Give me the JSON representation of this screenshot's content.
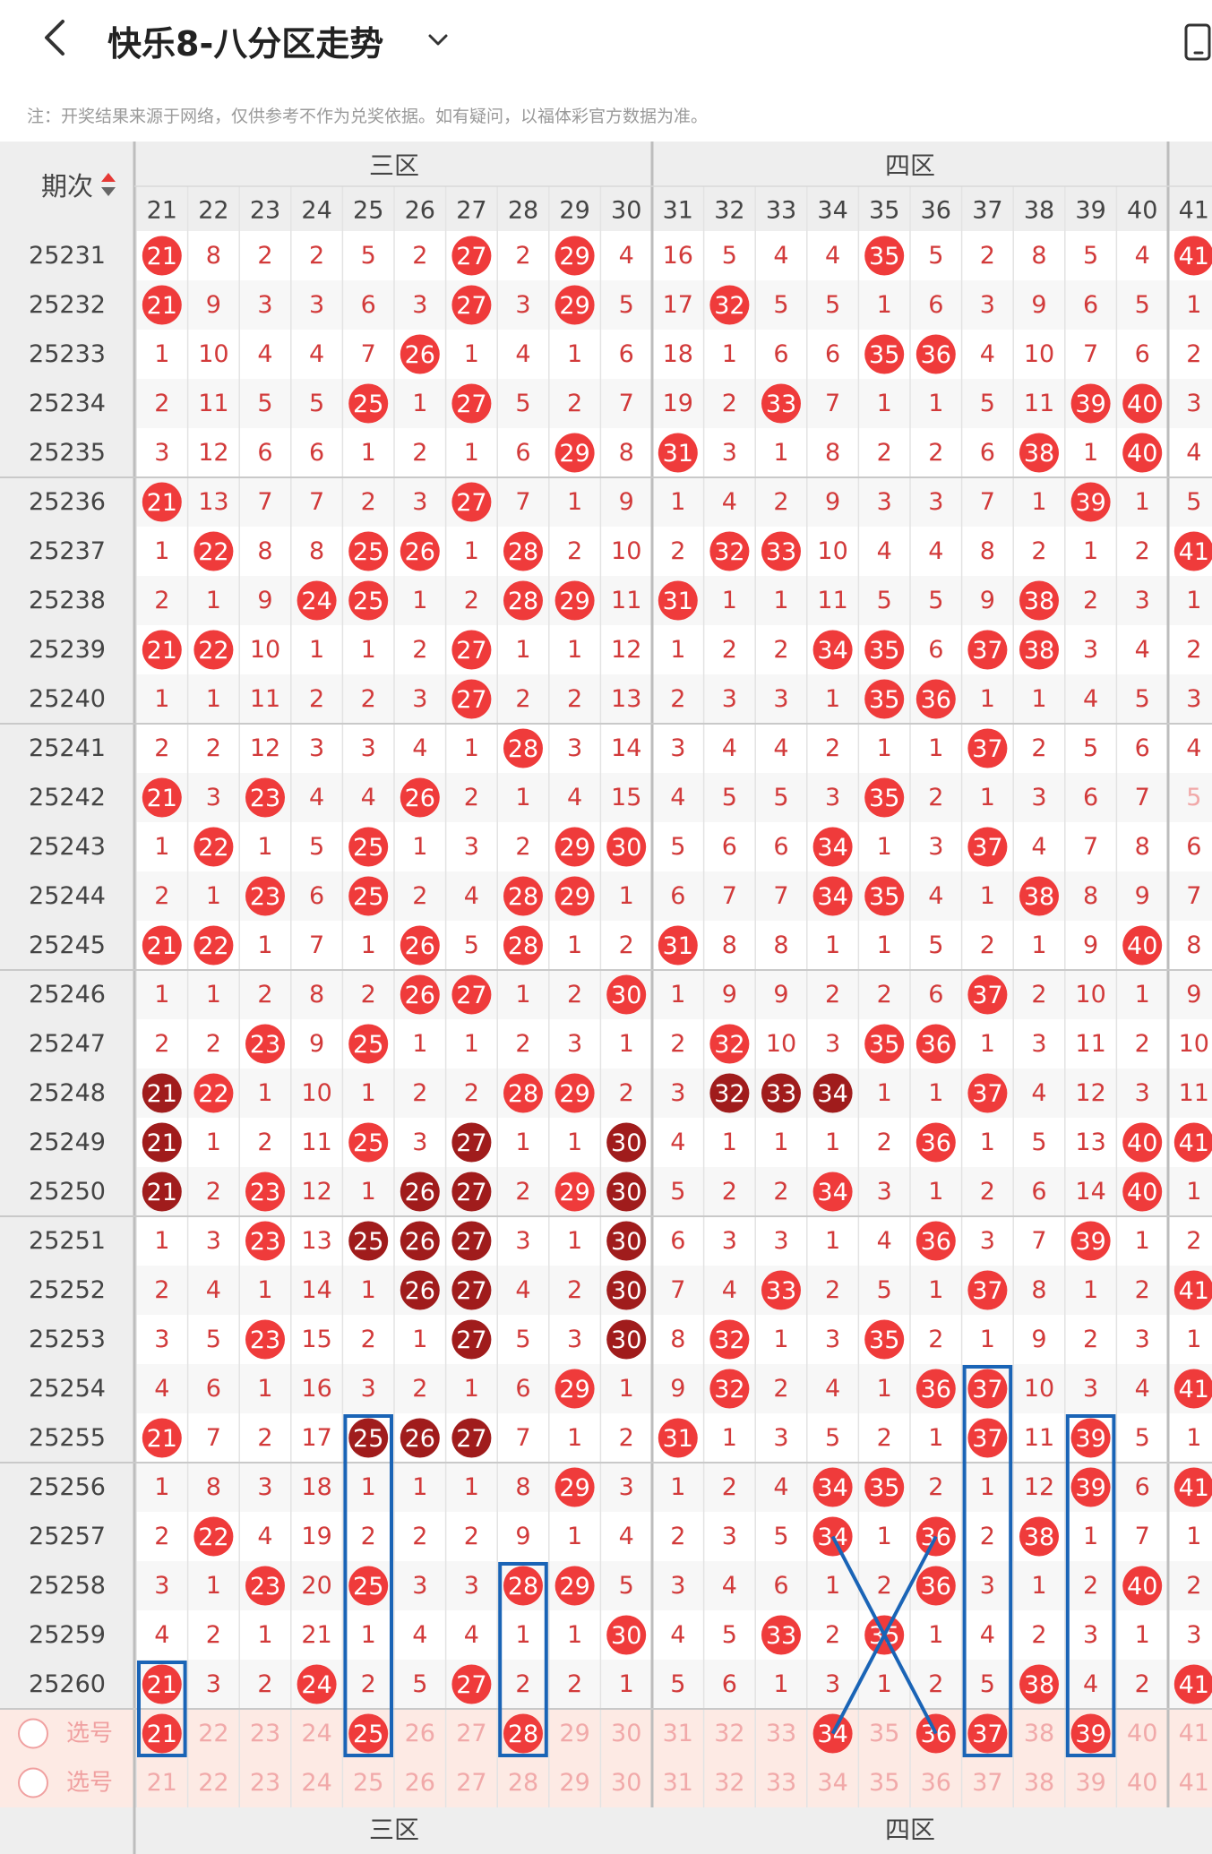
{
  "header": {
    "title": "快乐8-八分区走势",
    "back_icon": "back-arrow-icon",
    "dropdown_icon": "chevron-down-icon",
    "device_icon": "phone-icon"
  },
  "note": "注：开奖结果来源于网络，仅供参考不作为兑奖依据。如有疑问，以福体彩官方数据为准。",
  "table": {
    "period_header": "期次",
    "sort_icon": "sort-updown-icon",
    "zones": [
      {
        "label": "三区",
        "start": 21,
        "end": 30
      },
      {
        "label": "四区",
        "start": 31,
        "end": 40
      }
    ],
    "columns": [
      "21",
      "22",
      "23",
      "24",
      "25",
      "26",
      "27",
      "28",
      "29",
      "30",
      "31",
      "32",
      "33",
      "34",
      "35",
      "36",
      "37",
      "38",
      "39",
      "40",
      "41"
    ],
    "rows": [
      {
        "p": "25231",
        "c": [
          "H",
          "8",
          "2",
          "2",
          "5",
          "2",
          "H",
          "2",
          "H",
          "4",
          "16",
          "5",
          "4",
          "4",
          "H",
          "5",
          "2",
          "8",
          "5",
          "4",
          "H"
        ]
      },
      {
        "p": "25232",
        "c": [
          "H",
          "9",
          "3",
          "3",
          "6",
          "3",
          "H",
          "3",
          "H",
          "5",
          "17",
          "H",
          "5",
          "5",
          "1",
          "6",
          "3",
          "9",
          "6",
          "5",
          "1"
        ]
      },
      {
        "p": "25233",
        "c": [
          "1",
          "10",
          "4",
          "4",
          "7",
          "H",
          "1",
          "4",
          "1",
          "6",
          "18",
          "1",
          "6",
          "6",
          "H",
          "H",
          "4",
          "10",
          "7",
          "6",
          "2"
        ]
      },
      {
        "p": "25234",
        "c": [
          "2",
          "11",
          "5",
          "5",
          "H",
          "1",
          "H",
          "5",
          "2",
          "7",
          "19",
          "2",
          "H",
          "7",
          "1",
          "1",
          "5",
          "11",
          "H",
          "H",
          "3"
        ]
      },
      {
        "p": "25235",
        "c": [
          "3",
          "12",
          "6",
          "6",
          "1",
          "2",
          "1",
          "6",
          "H",
          "8",
          "H",
          "3",
          "1",
          "8",
          "2",
          "2",
          "6",
          "H",
          "1",
          "H",
          "4"
        ]
      },
      {
        "p": "25236",
        "c": [
          "H",
          "13",
          "7",
          "7",
          "2",
          "3",
          "H",
          "7",
          "1",
          "9",
          "1",
          "4",
          "2",
          "9",
          "3",
          "3",
          "7",
          "1",
          "H",
          "1",
          "5"
        ]
      },
      {
        "p": "25237",
        "c": [
          "1",
          "H",
          "8",
          "8",
          "H",
          "H",
          "1",
          "H",
          "2",
          "10",
          "2",
          "H",
          "H",
          "10",
          "4",
          "4",
          "8",
          "2",
          "1",
          "2",
          "H"
        ]
      },
      {
        "p": "25238",
        "c": [
          "2",
          "1",
          "9",
          "H",
          "H",
          "1",
          "2",
          "H",
          "H",
          "11",
          "H",
          "1",
          "1",
          "11",
          "5",
          "5",
          "9",
          "H",
          "2",
          "3",
          "1"
        ]
      },
      {
        "p": "25239",
        "c": [
          "H",
          "H",
          "10",
          "1",
          "1",
          "2",
          "H",
          "1",
          "1",
          "12",
          "1",
          "2",
          "2",
          "H",
          "H",
          "6",
          "H",
          "H",
          "3",
          "4",
          "2"
        ]
      },
      {
        "p": "25240",
        "c": [
          "1",
          "1",
          "11",
          "2",
          "2",
          "3",
          "H",
          "2",
          "2",
          "13",
          "2",
          "3",
          "3",
          "1",
          "H",
          "H",
          "1",
          "1",
          "4",
          "5",
          "3"
        ]
      },
      {
        "p": "25241",
        "c": [
          "2",
          "2",
          "12",
          "3",
          "3",
          "4",
          "1",
          "H",
          "3",
          "14",
          "3",
          "4",
          "4",
          "2",
          "1",
          "1",
          "H",
          "2",
          "5",
          "6",
          "4"
        ]
      },
      {
        "p": "25242",
        "c": [
          "H",
          "3",
          "H",
          "4",
          "4",
          "H",
          "2",
          "1",
          "4",
          "15",
          "4",
          "5",
          "5",
          "3",
          "H",
          "2",
          "1",
          "3",
          "6",
          "7",
          "5"
        ]
      },
      {
        "p": "25243",
        "c": [
          "1",
          "H",
          "1",
          "5",
          "H",
          "1",
          "3",
          "2",
          "H",
          "H",
          "5",
          "6",
          "6",
          "H",
          "1",
          "3",
          "H",
          "4",
          "7",
          "8",
          "6"
        ]
      },
      {
        "p": "25244",
        "c": [
          "2",
          "1",
          "H",
          "6",
          "H",
          "2",
          "4",
          "H",
          "H",
          "1",
          "6",
          "7",
          "7",
          "H",
          "H",
          "4",
          "1",
          "H",
          "8",
          "9",
          "7"
        ]
      },
      {
        "p": "25245",
        "c": [
          "H",
          "H",
          "1",
          "7",
          "1",
          "H",
          "5",
          "H",
          "1",
          "2",
          "H",
          "8",
          "8",
          "1",
          "1",
          "5",
          "2",
          "1",
          "9",
          "H",
          "8"
        ]
      },
      {
        "p": "25246",
        "c": [
          "1",
          "1",
          "2",
          "8",
          "2",
          "H",
          "H",
          "1",
          "2",
          "H",
          "1",
          "9",
          "9",
          "2",
          "2",
          "6",
          "H",
          "2",
          "10",
          "1",
          "9"
        ]
      },
      {
        "p": "25247",
        "c": [
          "2",
          "2",
          "H",
          "9",
          "H",
          "1",
          "1",
          "2",
          "3",
          "1",
          "2",
          "H",
          "10",
          "3",
          "H",
          "H",
          "1",
          "3",
          "11",
          "2",
          "10"
        ]
      },
      {
        "p": "25248",
        "c": [
          "D",
          "H",
          "1",
          "10",
          "1",
          "2",
          "2",
          "H",
          "H",
          "2",
          "3",
          "D",
          "D",
          "D",
          "1",
          "1",
          "H",
          "4",
          "12",
          "3",
          "11"
        ]
      },
      {
        "p": "25249",
        "c": [
          "D",
          "1",
          "2",
          "11",
          "H",
          "3",
          "D",
          "1",
          "1",
          "D",
          "4",
          "1",
          "1",
          "1",
          "2",
          "H",
          "1",
          "5",
          "13",
          "H",
          "H"
        ]
      },
      {
        "p": "25250",
        "c": [
          "D",
          "2",
          "H",
          "12",
          "1",
          "D",
          "D",
          "2",
          "H",
          "D",
          "5",
          "2",
          "2",
          "H",
          "3",
          "1",
          "2",
          "6",
          "14",
          "H",
          "1"
        ]
      },
      {
        "p": "25251",
        "c": [
          "1",
          "3",
          "H",
          "13",
          "D",
          "D",
          "D",
          "3",
          "1",
          "D",
          "6",
          "3",
          "3",
          "1",
          "4",
          "H",
          "3",
          "7",
          "H",
          "1",
          "2"
        ]
      },
      {
        "p": "25252",
        "c": [
          "2",
          "4",
          "1",
          "14",
          "1",
          "D",
          "D",
          "4",
          "2",
          "D",
          "7",
          "4",
          "H",
          "2",
          "5",
          "1",
          "H",
          "8",
          "1",
          "2",
          "H"
        ]
      },
      {
        "p": "25253",
        "c": [
          "3",
          "5",
          "H",
          "15",
          "2",
          "1",
          "D",
          "5",
          "3",
          "D",
          "8",
          "H",
          "1",
          "3",
          "H",
          "2",
          "1",
          "9",
          "2",
          "3",
          "1"
        ]
      },
      {
        "p": "25254",
        "c": [
          "4",
          "6",
          "1",
          "16",
          "3",
          "2",
          "1",
          "6",
          "H",
          "1",
          "9",
          "H",
          "2",
          "4",
          "1",
          "H",
          "H",
          "10",
          "3",
          "4",
          "H"
        ]
      },
      {
        "p": "25255",
        "c": [
          "H",
          "7",
          "2",
          "17",
          "D",
          "D",
          "D",
          "7",
          "1",
          "2",
          "H",
          "1",
          "3",
          "5",
          "2",
          "1",
          "H",
          "11",
          "H",
          "5",
          "1"
        ]
      },
      {
        "p": "25256",
        "c": [
          "1",
          "8",
          "3",
          "18",
          "1",
          "1",
          "1",
          "8",
          "H",
          "3",
          "1",
          "2",
          "4",
          "H",
          "H",
          "2",
          "1",
          "12",
          "H",
          "6",
          "H"
        ]
      },
      {
        "p": "25257",
        "c": [
          "2",
          "H",
          "4",
          "19",
          "2",
          "2",
          "2",
          "9",
          "1",
          "4",
          "2",
          "3",
          "5",
          "H",
          "1",
          "H",
          "2",
          "H",
          "1",
          "7",
          "1"
        ]
      },
      {
        "p": "25258",
        "c": [
          "3",
          "1",
          "H",
          "20",
          "H",
          "3",
          "3",
          "H",
          "H",
          "5",
          "3",
          "4",
          "6",
          "1",
          "2",
          "H",
          "3",
          "1",
          "2",
          "H",
          "2"
        ]
      },
      {
        "p": "25259",
        "c": [
          "4",
          "2",
          "1",
          "21",
          "1",
          "4",
          "4",
          "1",
          "1",
          "H",
          "4",
          "5",
          "H",
          "2",
          "H",
          "1",
          "4",
          "2",
          "3",
          "1",
          "3"
        ]
      },
      {
        "p": "25260",
        "c": [
          "H",
          "3",
          "2",
          "H",
          "2",
          "5",
          "H",
          "2",
          "2",
          "1",
          "5",
          "6",
          "1",
          "3",
          "1",
          "2",
          "5",
          "H",
          "4",
          "2",
          "H"
        ]
      }
    ],
    "select_rows": [
      {
        "label": "选号",
        "selected": [
          "21",
          "25",
          "28",
          "34",
          "36",
          "37",
          "39"
        ]
      },
      {
        "label": "选号",
        "selected": []
      }
    ],
    "colors": {
      "hit": "#ef3b3b",
      "hit_dark": "#a01c1c",
      "miss_text": "#d23a3a",
      "faded_text": "#f1a9a9",
      "box": "#1a64b6",
      "band": "#fdeae4"
    }
  }
}
